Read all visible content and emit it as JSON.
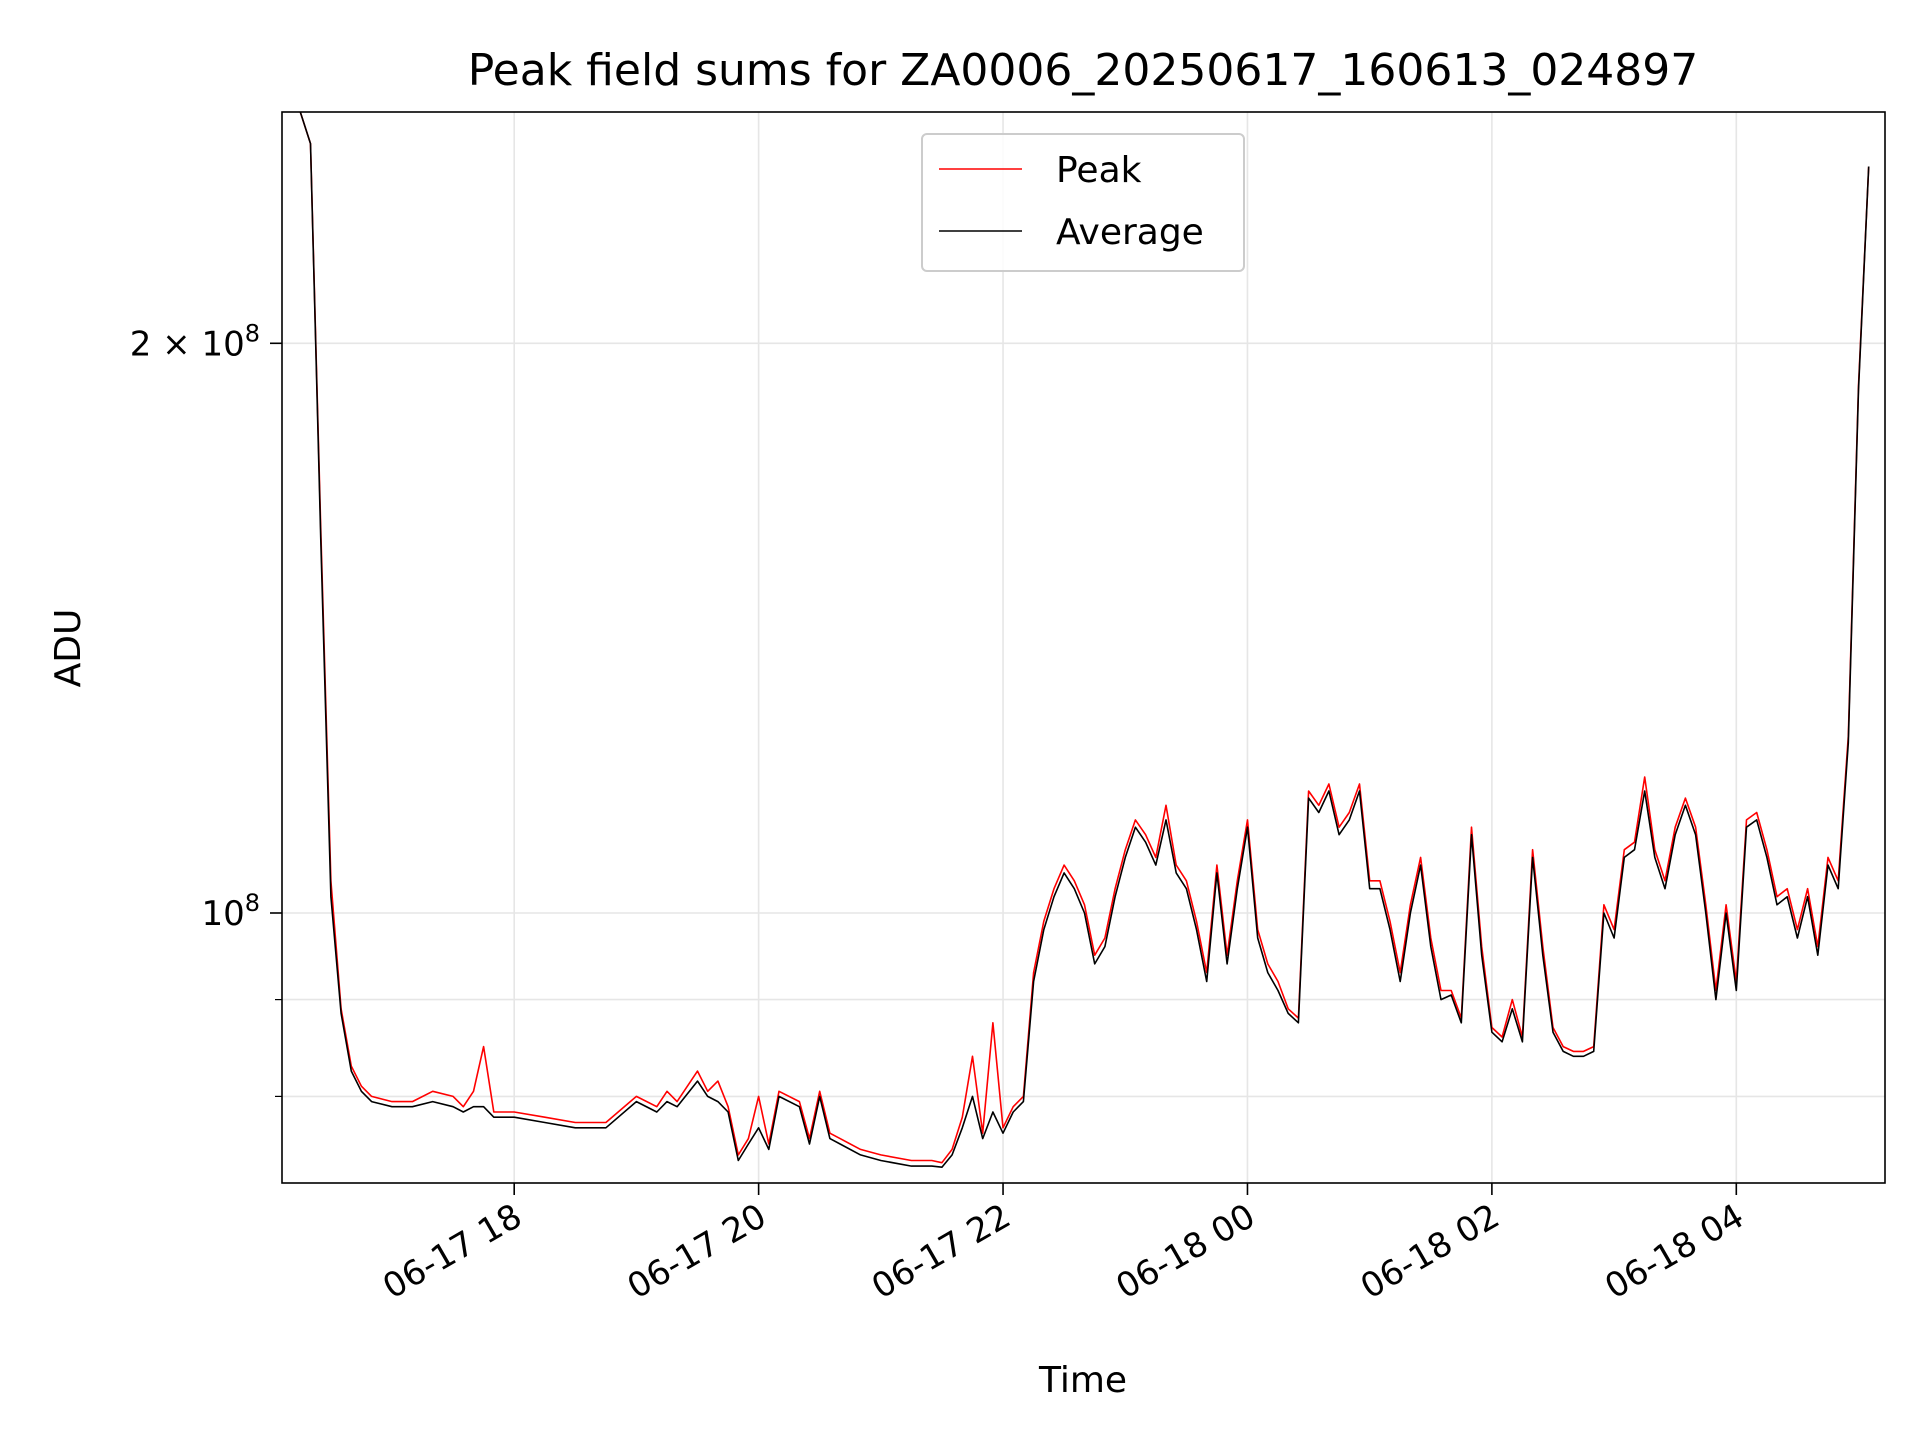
{
  "chart_data": {
    "type": "line",
    "title": "Peak field sums for ZA0006_20250617_160613_024897",
    "xlabel": "Time",
    "ylabel": "ADU",
    "y_scale": "log",
    "grid": true,
    "legend_position": "top-center",
    "xlim": [
      "2025-06-17 16:06",
      "2025-06-18 05:13"
    ],
    "ylim": [
      72000000,
      265000000
    ],
    "x_ticks": [
      {
        "t": "2025-06-17 18:00",
        "label": "06-17 18"
      },
      {
        "t": "2025-06-17 20:00",
        "label": "06-17 20"
      },
      {
        "t": "2025-06-17 22:00",
        "label": "06-17 22"
      },
      {
        "t": "2025-06-18 00:00",
        "label": "06-18 00"
      },
      {
        "t": "2025-06-18 02:00",
        "label": "06-18 02"
      },
      {
        "t": "2025-06-18 04:00",
        "label": "06-18 04"
      }
    ],
    "y_ticks_major": [
      {
        "value": 100000000,
        "base": "10",
        "exp": "8",
        "prefix": ""
      },
      {
        "value": 200000000,
        "base": "10",
        "exp": "8",
        "prefix": "2 × "
      }
    ],
    "y_ticks_minor": [
      80000000,
      90000000
    ],
    "series": [
      {
        "name": "Peak",
        "color": "#ff0000",
        "x": [
          "2025-06-17 16:15",
          "2025-06-17 16:20",
          "2025-06-17 16:25",
          "2025-06-17 16:30",
          "2025-06-17 16:35",
          "2025-06-17 16:40",
          "2025-06-17 16:45",
          "2025-06-17 16:50",
          "2025-06-17 17:00",
          "2025-06-17 17:10",
          "2025-06-17 17:20",
          "2025-06-17 17:30",
          "2025-06-17 17:35",
          "2025-06-17 17:40",
          "2025-06-17 17:45",
          "2025-06-17 17:50",
          "2025-06-17 18:00",
          "2025-06-17 18:15",
          "2025-06-17 18:30",
          "2025-06-17 18:45",
          "2025-06-17 19:00",
          "2025-06-17 19:10",
          "2025-06-17 19:15",
          "2025-06-17 19:20",
          "2025-06-17 19:30",
          "2025-06-17 19:35",
          "2025-06-17 19:40",
          "2025-06-17 19:45",
          "2025-06-17 19:50",
          "2025-06-17 19:55",
          "2025-06-17 20:00",
          "2025-06-17 20:05",
          "2025-06-17 20:10",
          "2025-06-17 20:20",
          "2025-06-17 20:25",
          "2025-06-17 20:30",
          "2025-06-17 20:35",
          "2025-06-17 20:40",
          "2025-06-17 20:50",
          "2025-06-17 21:00",
          "2025-06-17 21:15",
          "2025-06-17 21:25",
          "2025-06-17 21:30",
          "2025-06-17 21:35",
          "2025-06-17 21:40",
          "2025-06-17 21:45",
          "2025-06-17 21:50",
          "2025-06-17 21:55",
          "2025-06-17 22:00",
          "2025-06-17 22:05",
          "2025-06-17 22:10",
          "2025-06-17 22:15",
          "2025-06-17 22:20",
          "2025-06-17 22:25",
          "2025-06-17 22:30",
          "2025-06-17 22:35",
          "2025-06-17 22:40",
          "2025-06-17 22:45",
          "2025-06-17 22:50",
          "2025-06-17 22:55",
          "2025-06-17 23:00",
          "2025-06-17 23:05",
          "2025-06-17 23:10",
          "2025-06-17 23:15",
          "2025-06-17 23:20",
          "2025-06-17 23:25",
          "2025-06-17 23:30",
          "2025-06-17 23:35",
          "2025-06-17 23:40",
          "2025-06-17 23:45",
          "2025-06-17 23:50",
          "2025-06-17 23:55",
          "2025-06-18 00:00",
          "2025-06-18 00:05",
          "2025-06-18 00:10",
          "2025-06-18 00:15",
          "2025-06-18 00:20",
          "2025-06-18 00:25",
          "2025-06-18 00:30",
          "2025-06-18 00:35",
          "2025-06-18 00:40",
          "2025-06-18 00:45",
          "2025-06-18 00:50",
          "2025-06-18 00:55",
          "2025-06-18 01:00",
          "2025-06-18 01:05",
          "2025-06-18 01:10",
          "2025-06-18 01:15",
          "2025-06-18 01:20",
          "2025-06-18 01:25",
          "2025-06-18 01:30",
          "2025-06-18 01:35",
          "2025-06-18 01:40",
          "2025-06-18 01:45",
          "2025-06-18 01:50",
          "2025-06-18 01:55",
          "2025-06-18 02:00",
          "2025-06-18 02:05",
          "2025-06-18 02:10",
          "2025-06-18 02:15",
          "2025-06-18 02:20",
          "2025-06-18 02:25",
          "2025-06-18 02:30",
          "2025-06-18 02:35",
          "2025-06-18 02:40",
          "2025-06-18 02:45",
          "2025-06-18 02:50",
          "2025-06-18 02:55",
          "2025-06-18 03:00",
          "2025-06-18 03:05",
          "2025-06-18 03:10",
          "2025-06-18 03:15",
          "2025-06-18 03:20",
          "2025-06-18 03:25",
          "2025-06-18 03:30",
          "2025-06-18 03:35",
          "2025-06-18 03:40",
          "2025-06-18 03:45",
          "2025-06-18 03:50",
          "2025-06-18 03:55",
          "2025-06-18 04:00",
          "2025-06-18 04:05",
          "2025-06-18 04:10",
          "2025-06-18 04:15",
          "2025-06-18 04:20",
          "2025-06-18 04:25",
          "2025-06-18 04:30",
          "2025-06-18 04:35",
          "2025-06-18 04:40",
          "2025-06-18 04:45",
          "2025-06-18 04:50",
          "2025-06-18 04:55",
          "2025-06-18 05:00",
          "2025-06-18 05:05"
        ],
        "values": [
          265000000,
          255000000,
          160000000,
          104000000,
          89000000,
          83000000,
          81000000,
          80000000,
          79500000,
          79500000,
          80500000,
          80000000,
          79000000,
          80500000,
          85000000,
          78500000,
          78500000,
          78000000,
          77500000,
          77500000,
          80000000,
          79000000,
          80500000,
          79500000,
          82500000,
          80500000,
          81500000,
          79000000,
          74500000,
          76000000,
          80000000,
          75500000,
          80500000,
          79500000,
          76000000,
          80500000,
          76500000,
          76000000,
          75000000,
          74500000,
          74000000,
          74000000,
          73800000,
          75000000,
          78000000,
          84000000,
          76500000,
          87500000,
          77000000,
          79000000,
          80000000,
          93000000,
          99000000,
          103000000,
          106000000,
          104000000,
          101000000,
          95000000,
          97000000,
          103000000,
          108000000,
          112000000,
          110000000,
          107000000,
          114000000,
          106000000,
          104000000,
          99000000,
          93000000,
          106000000,
          95000000,
          104000000,
          112000000,
          98000000,
          94000000,
          92000000,
          89000000,
          88000000,
          116000000,
          114000000,
          117000000,
          111000000,
          113000000,
          117000000,
          104000000,
          104000000,
          99000000,
          93000000,
          101000000,
          107000000,
          97000000,
          91000000,
          91000000,
          88000000,
          111000000,
          96000000,
          87000000,
          86000000,
          90000000,
          86000000,
          108000000,
          96000000,
          87000000,
          85000000,
          84500000,
          84500000,
          85000000,
          101000000,
          98000000,
          108000000,
          109000000,
          118000000,
          108000000,
          104000000,
          111000000,
          115000000,
          111000000,
          101000000,
          91000000,
          101000000,
          92000000,
          112000000,
          113000000,
          108000000,
          102000000,
          103000000,
          98000000,
          103000000,
          96000000,
          107000000,
          104000000,
          124000000,
          190000000,
          248000000
        ]
      },
      {
        "name": "Average",
        "color": "#000000",
        "x": [
          "2025-06-17 16:15",
          "2025-06-17 16:20",
          "2025-06-17 16:25",
          "2025-06-17 16:30",
          "2025-06-17 16:35",
          "2025-06-17 16:40",
          "2025-06-17 16:45",
          "2025-06-17 16:50",
          "2025-06-17 17:00",
          "2025-06-17 17:10",
          "2025-06-17 17:20",
          "2025-06-17 17:30",
          "2025-06-17 17:35",
          "2025-06-17 17:40",
          "2025-06-17 17:45",
          "2025-06-17 17:50",
          "2025-06-17 18:00",
          "2025-06-17 18:15",
          "2025-06-17 18:30",
          "2025-06-17 18:45",
          "2025-06-17 19:00",
          "2025-06-17 19:10",
          "2025-06-17 19:15",
          "2025-06-17 19:20",
          "2025-06-17 19:30",
          "2025-06-17 19:35",
          "2025-06-17 19:40",
          "2025-06-17 19:45",
          "2025-06-17 19:50",
          "2025-06-17 19:55",
          "2025-06-17 20:00",
          "2025-06-17 20:05",
          "2025-06-17 20:10",
          "2025-06-17 20:20",
          "2025-06-17 20:25",
          "2025-06-17 20:30",
          "2025-06-17 20:35",
          "2025-06-17 20:40",
          "2025-06-17 20:50",
          "2025-06-17 21:00",
          "2025-06-17 21:15",
          "2025-06-17 21:25",
          "2025-06-17 21:30",
          "2025-06-17 21:35",
          "2025-06-17 21:40",
          "2025-06-17 21:45",
          "2025-06-17 21:50",
          "2025-06-17 21:55",
          "2025-06-17 22:00",
          "2025-06-17 22:05",
          "2025-06-17 22:10",
          "2025-06-17 22:15",
          "2025-06-17 22:20",
          "2025-06-17 22:25",
          "2025-06-17 22:30",
          "2025-06-17 22:35",
          "2025-06-17 22:40",
          "2025-06-17 22:45",
          "2025-06-17 22:50",
          "2025-06-17 22:55",
          "2025-06-17 23:00",
          "2025-06-17 23:05",
          "2025-06-17 23:10",
          "2025-06-17 23:15",
          "2025-06-17 23:20",
          "2025-06-17 23:25",
          "2025-06-17 23:30",
          "2025-06-17 23:35",
          "2025-06-17 23:40",
          "2025-06-17 23:45",
          "2025-06-17 23:50",
          "2025-06-17 23:55",
          "2025-06-18 00:00",
          "2025-06-18 00:05",
          "2025-06-18 00:10",
          "2025-06-18 00:15",
          "2025-06-18 00:20",
          "2025-06-18 00:25",
          "2025-06-18 00:30",
          "2025-06-18 00:35",
          "2025-06-18 00:40",
          "2025-06-18 00:45",
          "2025-06-18 00:50",
          "2025-06-18 00:55",
          "2025-06-18 01:00",
          "2025-06-18 01:05",
          "2025-06-18 01:10",
          "2025-06-18 01:15",
          "2025-06-18 01:20",
          "2025-06-18 01:25",
          "2025-06-18 01:30",
          "2025-06-18 01:35",
          "2025-06-18 01:40",
          "2025-06-18 01:45",
          "2025-06-18 01:50",
          "2025-06-18 01:55",
          "2025-06-18 02:00",
          "2025-06-18 02:05",
          "2025-06-18 02:10",
          "2025-06-18 02:15",
          "2025-06-18 02:20",
          "2025-06-18 02:25",
          "2025-06-18 02:30",
          "2025-06-18 02:35",
          "2025-06-18 02:40",
          "2025-06-18 02:45",
          "2025-06-18 02:50",
          "2025-06-18 02:55",
          "2025-06-18 03:00",
          "2025-06-18 03:05",
          "2025-06-18 03:10",
          "2025-06-18 03:15",
          "2025-06-18 03:20",
          "2025-06-18 03:25",
          "2025-06-18 03:30",
          "2025-06-18 03:35",
          "2025-06-18 03:40",
          "2025-06-18 03:45",
          "2025-06-18 03:50",
          "2025-06-18 03:55",
          "2025-06-18 04:00",
          "2025-06-18 04:05",
          "2025-06-18 04:10",
          "2025-06-18 04:15",
          "2025-06-18 04:20",
          "2025-06-18 04:25",
          "2025-06-18 04:30",
          "2025-06-18 04:35",
          "2025-06-18 04:40",
          "2025-06-18 04:45",
          "2025-06-18 04:50",
          "2025-06-18 04:55",
          "2025-06-18 05:00",
          "2025-06-18 05:05"
        ],
        "values": [
          265000000,
          255000000,
          158000000,
          102000000,
          88500000,
          82500000,
          80500000,
          79500000,
          79000000,
          79000000,
          79500000,
          79000000,
          78500000,
          79000000,
          79000000,
          78000000,
          78000000,
          77500000,
          77000000,
          77000000,
          79500000,
          78500000,
          79500000,
          79000000,
          81500000,
          80000000,
          79500000,
          78500000,
          74000000,
          75500000,
          77000000,
          75000000,
          80000000,
          79000000,
          75500000,
          80000000,
          76000000,
          75500000,
          74500000,
          74000000,
          73500000,
          73500000,
          73400000,
          74500000,
          77000000,
          80000000,
          76000000,
          78500000,
          76500000,
          78500000,
          79500000,
          92000000,
          98000000,
          102000000,
          105000000,
          103000000,
          100000000,
          94000000,
          96000000,
          102000000,
          107000000,
          111000000,
          109000000,
          106000000,
          112000000,
          105000000,
          103000000,
          98000000,
          92000000,
          105000000,
          94000000,
          103000000,
          111000000,
          97000000,
          93000000,
          91000000,
          88500000,
          87500000,
          115000000,
          113000000,
          116000000,
          110000000,
          112000000,
          116000000,
          103000000,
          103000000,
          98000000,
          92000000,
          100000000,
          106000000,
          96000000,
          90000000,
          90500000,
          87500000,
          110000000,
          95000000,
          86500000,
          85500000,
          89000000,
          85500000,
          107000000,
          95000000,
          86500000,
          84500000,
          84000000,
          84000000,
          84500000,
          100000000,
          97000000,
          107000000,
          108000000,
          116000000,
          107000000,
          103000000,
          110000000,
          114000000,
          110000000,
          100000000,
          90000000,
          100000000,
          91000000,
          111000000,
          112000000,
          107000000,
          101000000,
          102000000,
          97000000,
          102000000,
          95000000,
          106000000,
          103000000,
          123000000,
          189000000,
          248000000
        ]
      }
    ]
  }
}
